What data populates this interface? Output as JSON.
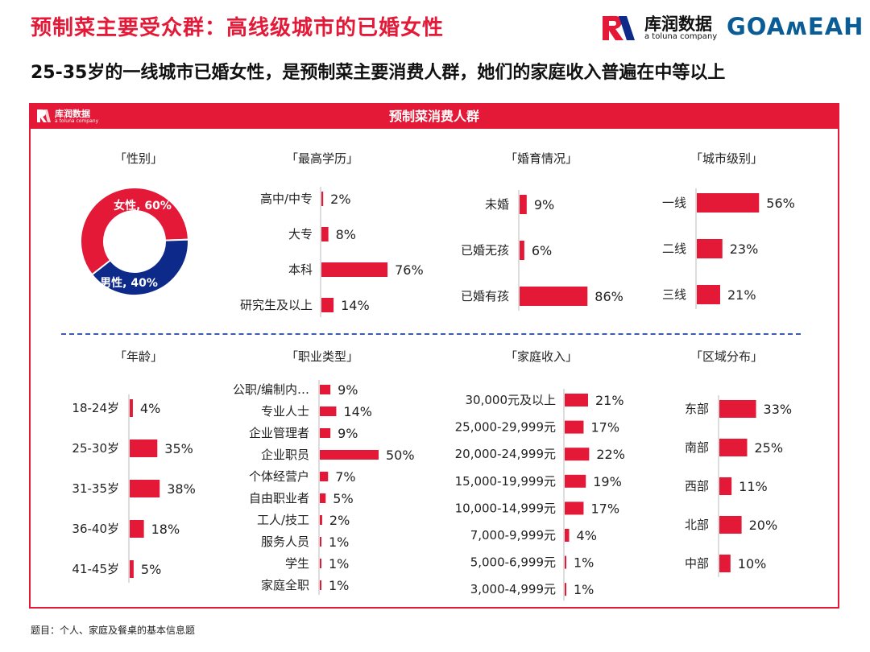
{
  "page": {
    "title": "预制菜主要受众群：高线级城市的已婚女性",
    "subtitle": "25-35岁的一线城市已婚女性，是预制菜主要消费人群，她们的家庭收入普遍在中等以上",
    "footer": "题目：个人、家庭及餐桌的基本信息题"
  },
  "logos": {
    "kantar_name": "库润数据",
    "kantar_sub": "a toluna company",
    "goa": "GOAʍEAH"
  },
  "panel": {
    "title": "预制菜消费人群"
  },
  "colors": {
    "accent": "#e31937",
    "navy": "#0d2a8a",
    "axis": "#bbbbbb"
  },
  "chart_data": [
    {
      "id": "gender",
      "type": "pie",
      "title": "「性别」",
      "categories": [
        "女性",
        "男性"
      ],
      "values": [
        60,
        40
      ],
      "labels": [
        "女性, 60%",
        "男性, 40%"
      ]
    },
    {
      "id": "education",
      "type": "bar",
      "title": "「最高学历」",
      "categories": [
        "高中/中专",
        "大专",
        "本科",
        "研究生及以上"
      ],
      "values": [
        2,
        8,
        76,
        14
      ],
      "value_labels": [
        "2%",
        "8%",
        "76%",
        "14%"
      ]
    },
    {
      "id": "marriage",
      "type": "bar",
      "title": "「婚育情况」",
      "categories": [
        "未婚",
        "已婚无孩",
        "已婚有孩"
      ],
      "values": [
        9,
        6,
        86
      ],
      "value_labels": [
        "9%",
        "6%",
        "86%"
      ]
    },
    {
      "id": "city",
      "type": "bar",
      "title": "「城市级别」",
      "categories": [
        "一线",
        "二线",
        "三线"
      ],
      "values": [
        56,
        23,
        21
      ],
      "value_labels": [
        "56%",
        "23%",
        "21%"
      ]
    },
    {
      "id": "age",
      "type": "bar",
      "title": "「年龄」",
      "categories": [
        "18-24岁",
        "25-30岁",
        "31-35岁",
        "36-40岁",
        "41-45岁"
      ],
      "values": [
        4,
        35,
        38,
        18,
        5
      ],
      "value_labels": [
        "4%",
        "35%",
        "38%",
        "18%",
        "5%"
      ]
    },
    {
      "id": "occupation",
      "type": "bar",
      "title": "「职业类型」",
      "categories": [
        "公职/编制内…",
        "专业人士",
        "企业管理者",
        "企业职员",
        "个体经营户",
        "自由职业者",
        "工人/技工",
        "服务人员",
        "学生",
        "家庭全职"
      ],
      "values": [
        9,
        14,
        9,
        50,
        7,
        5,
        2,
        1,
        1,
        1
      ],
      "value_labels": [
        "9%",
        "14%",
        "9%",
        "50%",
        "7%",
        "5%",
        "2%",
        "1%",
        "1%",
        "1%"
      ]
    },
    {
      "id": "income",
      "type": "bar",
      "title": "「家庭收入」",
      "categories": [
        "30,000元及以上",
        "25,000-29,999元",
        "20,000-24,999元",
        "15,000-19,999元",
        "10,000-14,999元",
        "7,000-9,999元",
        "5,000-6,999元",
        "3,000-4,999元"
      ],
      "values": [
        21,
        17,
        22,
        19,
        17,
        4,
        1,
        1
      ],
      "value_labels": [
        "21%",
        "17%",
        "22%",
        "19%",
        "17%",
        "4%",
        "1%",
        "1%"
      ]
    },
    {
      "id": "region",
      "type": "bar",
      "title": "「区域分布」",
      "categories": [
        "东部",
        "南部",
        "西部",
        "北部",
        "中部"
      ],
      "values": [
        33,
        25,
        11,
        20,
        10
      ],
      "value_labels": [
        "33%",
        "25%",
        "11%",
        "20%",
        "10%"
      ]
    }
  ]
}
